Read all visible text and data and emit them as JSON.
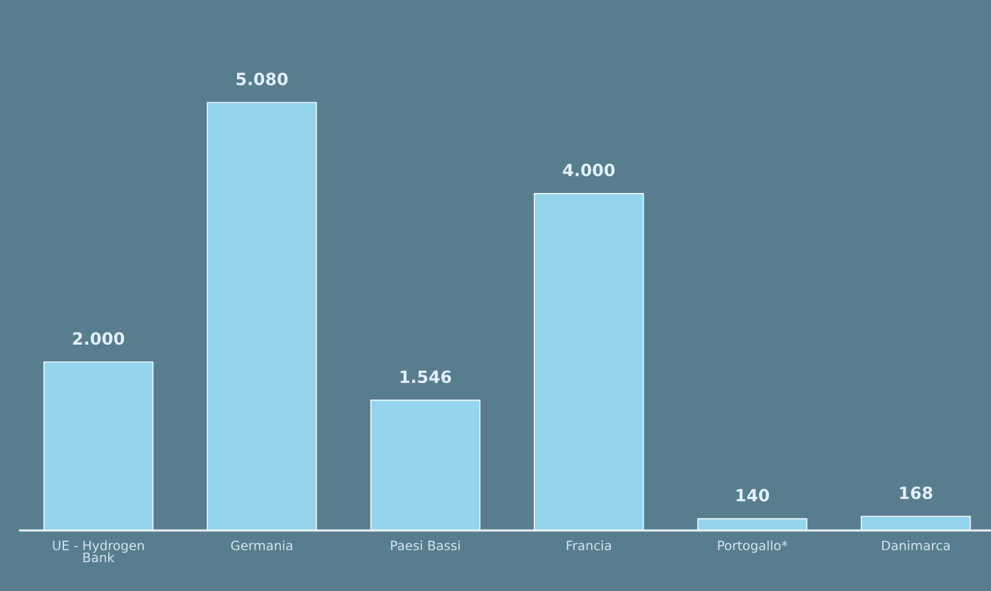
{
  "chart_data": {
    "type": "bar",
    "categories": [
      "UE - Hydrogen\nBank",
      "Germania",
      "Paesi Bassi",
      "Francia",
      "Portogallo*",
      "Danimarca"
    ],
    "values": [
      2000,
      5080,
      1546,
      4000,
      140,
      168
    ],
    "value_labels": [
      "2.000",
      "5.080",
      "1.546",
      "4.000",
      "140",
      "168"
    ],
    "color": "#94d4ed",
    "grid": false,
    "legend": false
  }
}
